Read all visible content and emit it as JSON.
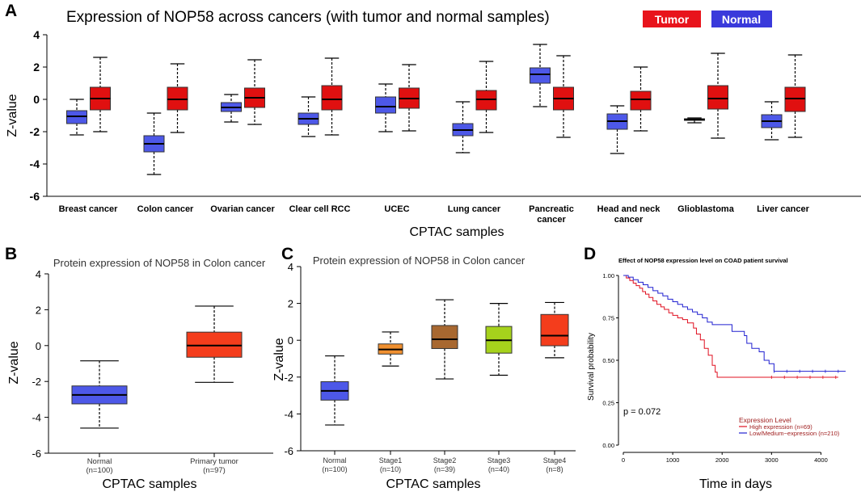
{
  "panels": {
    "A": "A",
    "B": "B",
    "C": "C",
    "D": "D"
  },
  "chart_data": [
    {
      "id": "A",
      "type": "box",
      "title": "Expression of NOP58 across cancers (with tumor and normal samples)",
      "xlabel": "CPTAC samples",
      "ylabel": "Z-value",
      "ylim": [
        -6,
        4
      ],
      "yticks": [
        "-6",
        "-4",
        "-2",
        "0",
        "2",
        "4"
      ],
      "legend": [
        {
          "name": "Tumor",
          "color": "#e8141c"
        },
        {
          "name": "Normal",
          "color": "#3a3adb"
        }
      ],
      "normal_color": "#4d58e8",
      "tumor_color": "#e01010",
      "categories": [
        {
          "label": [
            "Breast cancer"
          ],
          "normal": {
            "min": -2.2,
            "q1": -1.5,
            "median": -1.05,
            "q3": -0.7,
            "max": 0.0
          },
          "tumor": {
            "min": -2.0,
            "q1": -0.65,
            "median": 0.05,
            "q3": 0.75,
            "max": 2.6
          }
        },
        {
          "label": [
            "Colon cancer"
          ],
          "normal": {
            "min": -4.65,
            "q1": -3.25,
            "median": -2.75,
            "q3": -2.25,
            "max": -0.85
          },
          "tumor": {
            "min": -2.05,
            "q1": -0.65,
            "median": 0.0,
            "q3": 0.75,
            "max": 2.2
          }
        },
        {
          "label": [
            "Ovarian cancer"
          ],
          "normal": {
            "min": -1.4,
            "q1": -0.75,
            "median": -0.5,
            "q3": -0.2,
            "max": 0.3
          },
          "tumor": {
            "min": -1.55,
            "q1": -0.5,
            "median": 0.1,
            "q3": 0.7,
            "max": 2.45
          }
        },
        {
          "label": [
            "Clear cell RCC"
          ],
          "normal": {
            "min": -2.3,
            "q1": -1.55,
            "median": -1.2,
            "q3": -0.85,
            "max": 0.15
          },
          "tumor": {
            "min": -2.2,
            "q1": -0.65,
            "median": 0.0,
            "q3": 0.85,
            "max": 2.55
          }
        },
        {
          "label": [
            "UCEC"
          ],
          "normal": {
            "min": -2.0,
            "q1": -0.85,
            "median": -0.45,
            "q3": 0.15,
            "max": 0.95
          },
          "tumor": {
            "min": -1.95,
            "q1": -0.55,
            "median": 0.05,
            "q3": 0.7,
            "max": 2.15
          }
        },
        {
          "label": [
            "Lung cancer"
          ],
          "normal": {
            "min": -3.3,
            "q1": -2.25,
            "median": -1.9,
            "q3": -1.5,
            "max": -0.15
          },
          "tumor": {
            "min": -2.05,
            "q1": -0.65,
            "median": 0.0,
            "q3": 0.55,
            "max": 2.35
          }
        },
        {
          "label": [
            "Pancreatic",
            "cancer"
          ],
          "normal": {
            "min": -0.45,
            "q1": 1.0,
            "median": 1.55,
            "q3": 1.95,
            "max": 3.4
          },
          "tumor": {
            "min": -2.35,
            "q1": -0.65,
            "median": 0.05,
            "q3": 0.75,
            "max": 2.7
          }
        },
        {
          "label": [
            "Head and neck",
            "cancer"
          ],
          "normal": {
            "min": -3.35,
            "q1": -1.85,
            "median": -1.35,
            "q3": -0.9,
            "max": -0.4
          },
          "tumor": {
            "min": -1.95,
            "q1": -0.65,
            "median": 0.0,
            "q3": 0.5,
            "max": 2.0
          }
        },
        {
          "label": [
            "Glioblastoma"
          ],
          "normal": {
            "min": -1.45,
            "q1": -1.3,
            "median": -1.25,
            "q3": -1.2,
            "max": -1.15
          },
          "tumor": {
            "min": -2.4,
            "q1": -0.6,
            "median": 0.05,
            "q3": 0.85,
            "max": 2.85
          }
        },
        {
          "label": [
            "Liver cancer"
          ],
          "normal": {
            "min": -2.5,
            "q1": -1.75,
            "median": -1.35,
            "q3": -0.95,
            "max": -0.15
          },
          "tumor": {
            "min": -2.35,
            "q1": -0.75,
            "median": 0.05,
            "q3": 0.75,
            "max": 2.75
          }
        }
      ]
    },
    {
      "id": "B",
      "type": "box",
      "title": "Protein expression of NOP58 in Colon cancer",
      "xlabel": "CPTAC samples",
      "ylabel": "Z-value",
      "ylim": [
        -6,
        4
      ],
      "yticks": [
        "-6",
        "-4",
        "-2",
        "0",
        "2",
        "4"
      ],
      "categories": [
        {
          "label": [
            "Normal",
            "(n=100)"
          ],
          "color": "#4d58e8",
          "stats": {
            "min": -4.6,
            "q1": -3.25,
            "median": -2.75,
            "q3": -2.25,
            "max": -0.85
          }
        },
        {
          "label": [
            "Primary tumor",
            "(n=97)"
          ],
          "color": "#f43d1c",
          "stats": {
            "min": -2.05,
            "q1": -0.65,
            "median": 0.0,
            "q3": 0.75,
            "max": 2.2
          }
        }
      ]
    },
    {
      "id": "C",
      "type": "box",
      "title": "Protein expression of NOP58 in Colon cancer",
      "xlabel": "CPTAC samples",
      "ylabel": "Z-value",
      "ylim": [
        -6,
        4
      ],
      "yticks": [
        "-6",
        "-4",
        "-2",
        "0",
        "2",
        "4"
      ],
      "categories": [
        {
          "label": [
            "Normal",
            "(n=100)"
          ],
          "color": "#4d58e8",
          "stats": {
            "min": -4.6,
            "q1": -3.25,
            "median": -2.75,
            "q3": -2.25,
            "max": -0.85
          }
        },
        {
          "label": [
            "Stage1",
            "(n=10)"
          ],
          "color": "#f09030",
          "stats": {
            "min": -1.4,
            "q1": -0.75,
            "median": -0.5,
            "q3": -0.2,
            "max": 0.45
          }
        },
        {
          "label": [
            "Stage2",
            "(n=39)"
          ],
          "color": "#a86830",
          "stats": {
            "min": -2.1,
            "q1": -0.45,
            "median": 0.05,
            "q3": 0.8,
            "max": 2.2
          }
        },
        {
          "label": [
            "Stage3",
            "(n=40)"
          ],
          "color": "#a6d21c",
          "stats": {
            "min": -1.9,
            "q1": -0.7,
            "median": 0.0,
            "q3": 0.75,
            "max": 2.0
          }
        },
        {
          "label": [
            "Stage4",
            "(n=8)"
          ],
          "color": "#f43d1c",
          "stats": {
            "min": -0.95,
            "q1": -0.3,
            "median": 0.25,
            "q3": 1.4,
            "max": 2.05
          }
        }
      ]
    },
    {
      "id": "D",
      "type": "line",
      "title": "Effect of NOP58 expression level on COAD patient survival",
      "xlabel": "Time in days",
      "ylabel": "Survival probability",
      "xlim": [
        0,
        4500
      ],
      "ylim": [
        0,
        1
      ],
      "xticks": [
        "0",
        "1000",
        "2000",
        "3000",
        "4000"
      ],
      "yticks": [
        "0.00",
        "0.25",
        "0.50",
        "0.75",
        "1.00"
      ],
      "pvalue": "p = 0.072",
      "legend_title": "Expression Level",
      "series": [
        {
          "name": "High expression (n=69)",
          "color": "#e01020",
          "points": [
            [
              0,
              1.0
            ],
            [
              60,
              0.985
            ],
            [
              130,
              0.97
            ],
            [
              200,
              0.955
            ],
            [
              260,
              0.94
            ],
            [
              330,
              0.925
            ],
            [
              390,
              0.905
            ],
            [
              450,
              0.89
            ],
            [
              520,
              0.87
            ],
            [
              600,
              0.85
            ],
            [
              680,
              0.83
            ],
            [
              760,
              0.815
            ],
            [
              830,
              0.8
            ],
            [
              920,
              0.78
            ],
            [
              1000,
              0.765
            ],
            [
              1100,
              0.75
            ],
            [
              1200,
              0.74
            ],
            [
              1300,
              0.72
            ],
            [
              1420,
              0.69
            ],
            [
              1480,
              0.655
            ],
            [
              1560,
              0.62
            ],
            [
              1640,
              0.57
            ],
            [
              1720,
              0.53
            ],
            [
              1800,
              0.47
            ],
            [
              1860,
              0.43
            ],
            [
              1900,
              0.4
            ],
            [
              2300,
              0.4
            ],
            [
              3000,
              0.4
            ],
            [
              3700,
              0.4
            ],
            [
              4350,
              0.4
            ]
          ]
        },
        {
          "name": "Low/Medium−expression (n=210)",
          "color": "#2020d0",
          "points": [
            [
              0,
              1.0
            ],
            [
              100,
              0.99
            ],
            [
              200,
              0.975
            ],
            [
              300,
              0.96
            ],
            [
              400,
              0.945
            ],
            [
              500,
              0.93
            ],
            [
              600,
              0.91
            ],
            [
              700,
              0.895
            ],
            [
              800,
              0.88
            ],
            [
              900,
              0.86
            ],
            [
              1000,
              0.845
            ],
            [
              1100,
              0.83
            ],
            [
              1200,
              0.815
            ],
            [
              1300,
              0.8
            ],
            [
              1400,
              0.785
            ],
            [
              1500,
              0.77
            ],
            [
              1600,
              0.75
            ],
            [
              1700,
              0.725
            ],
            [
              1800,
              0.71
            ],
            [
              2100,
              0.71
            ],
            [
              2200,
              0.67
            ],
            [
              2450,
              0.645
            ],
            [
              2500,
              0.6
            ],
            [
              2600,
              0.57
            ],
            [
              2750,
              0.55
            ],
            [
              2850,
              0.5
            ],
            [
              2950,
              0.48
            ],
            [
              3050,
              0.435
            ],
            [
              3600,
              0.435
            ],
            [
              4500,
              0.435
            ]
          ]
        }
      ]
    }
  ]
}
